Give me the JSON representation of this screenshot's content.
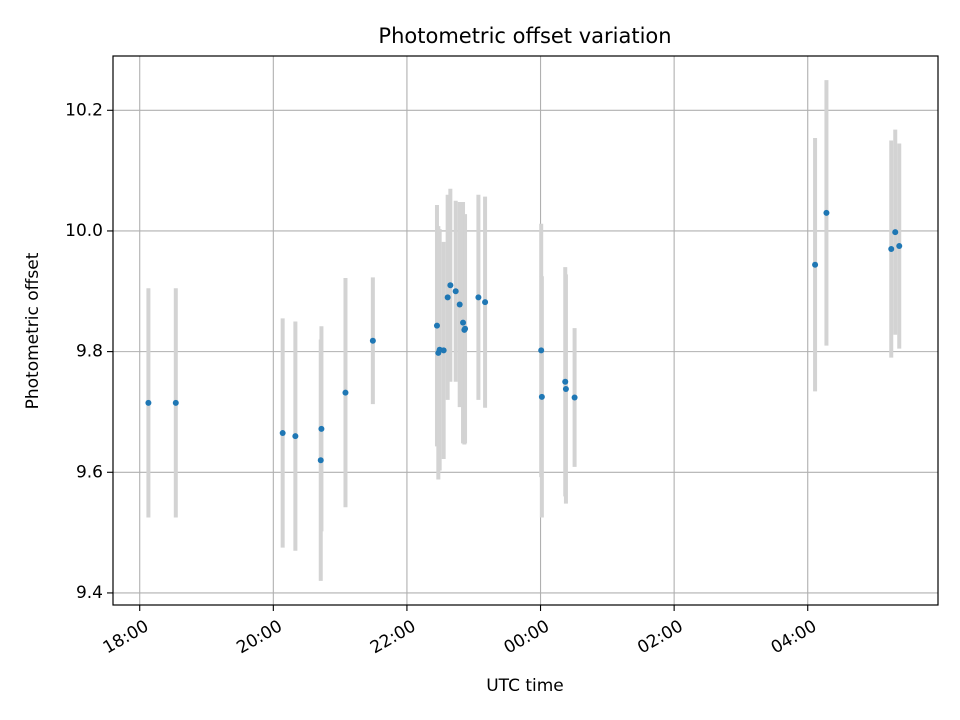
{
  "chart_data": {
    "type": "scatter",
    "title": "Photometric offset variation",
    "xlabel": "UTC time",
    "ylabel": "Photometric offset",
    "x_axis_kind": "time (hours since 18:00 UTC)",
    "xlim": [
      17.6,
      29.95
    ],
    "ylim": [
      9.38,
      10.29
    ],
    "grid": true,
    "x_ticks": [
      {
        "value": 18,
        "label": "18:00"
      },
      {
        "value": 20,
        "label": "20:00"
      },
      {
        "value": 22,
        "label": "22:00"
      },
      {
        "value": 24,
        "label": "00:00"
      },
      {
        "value": 26,
        "label": "02:00"
      },
      {
        "value": 28,
        "label": "04:00"
      }
    ],
    "y_ticks": [
      {
        "value": 9.4,
        "label": "9.4"
      },
      {
        "value": 9.6,
        "label": "9.6"
      },
      {
        "value": 9.8,
        "label": "9.8"
      },
      {
        "value": 10.0,
        "label": "10.0"
      },
      {
        "value": 10.2,
        "label": "10.2"
      }
    ],
    "colors": {
      "points": "#1f77b4",
      "errorbars": "#d3d3d3",
      "grid": "#b0b0b0"
    },
    "series": [
      {
        "x": [
          18.13,
          18.54,
          20.14,
          20.33,
          20.72,
          20.71,
          21.08,
          21.49,
          22.45,
          22.47,
          22.49,
          22.55,
          22.61,
          22.65,
          22.73,
          22.79,
          22.84,
          22.86,
          22.87,
          23.07,
          23.17,
          24.01,
          24.02,
          24.37,
          24.38,
          24.51,
          28.11,
          28.28,
          29.25,
          29.31,
          29.37
        ],
        "y": [
          9.715,
          9.715,
          9.665,
          9.66,
          9.672,
          9.62,
          9.732,
          9.818,
          9.843,
          9.798,
          9.803,
          9.802,
          9.89,
          9.91,
          9.9,
          9.878,
          9.848,
          9.836,
          9.838,
          9.89,
          9.882,
          9.802,
          9.725,
          9.75,
          9.738,
          9.724,
          9.944,
          10.03,
          9.97,
          9.998,
          9.975
        ],
        "yerr": [
          0.19,
          0.19,
          0.19,
          0.19,
          0.17,
          0.2,
          0.19,
          0.105,
          0.2,
          0.21,
          0.2,
          0.18,
          0.17,
          0.16,
          0.15,
          0.17,
          0.2,
          0.19,
          0.19,
          0.17,
          0.175,
          0.21,
          0.2,
          0.19,
          0.19,
          0.115,
          0.21,
          0.22,
          0.18,
          0.17,
          0.17
        ]
      }
    ]
  }
}
